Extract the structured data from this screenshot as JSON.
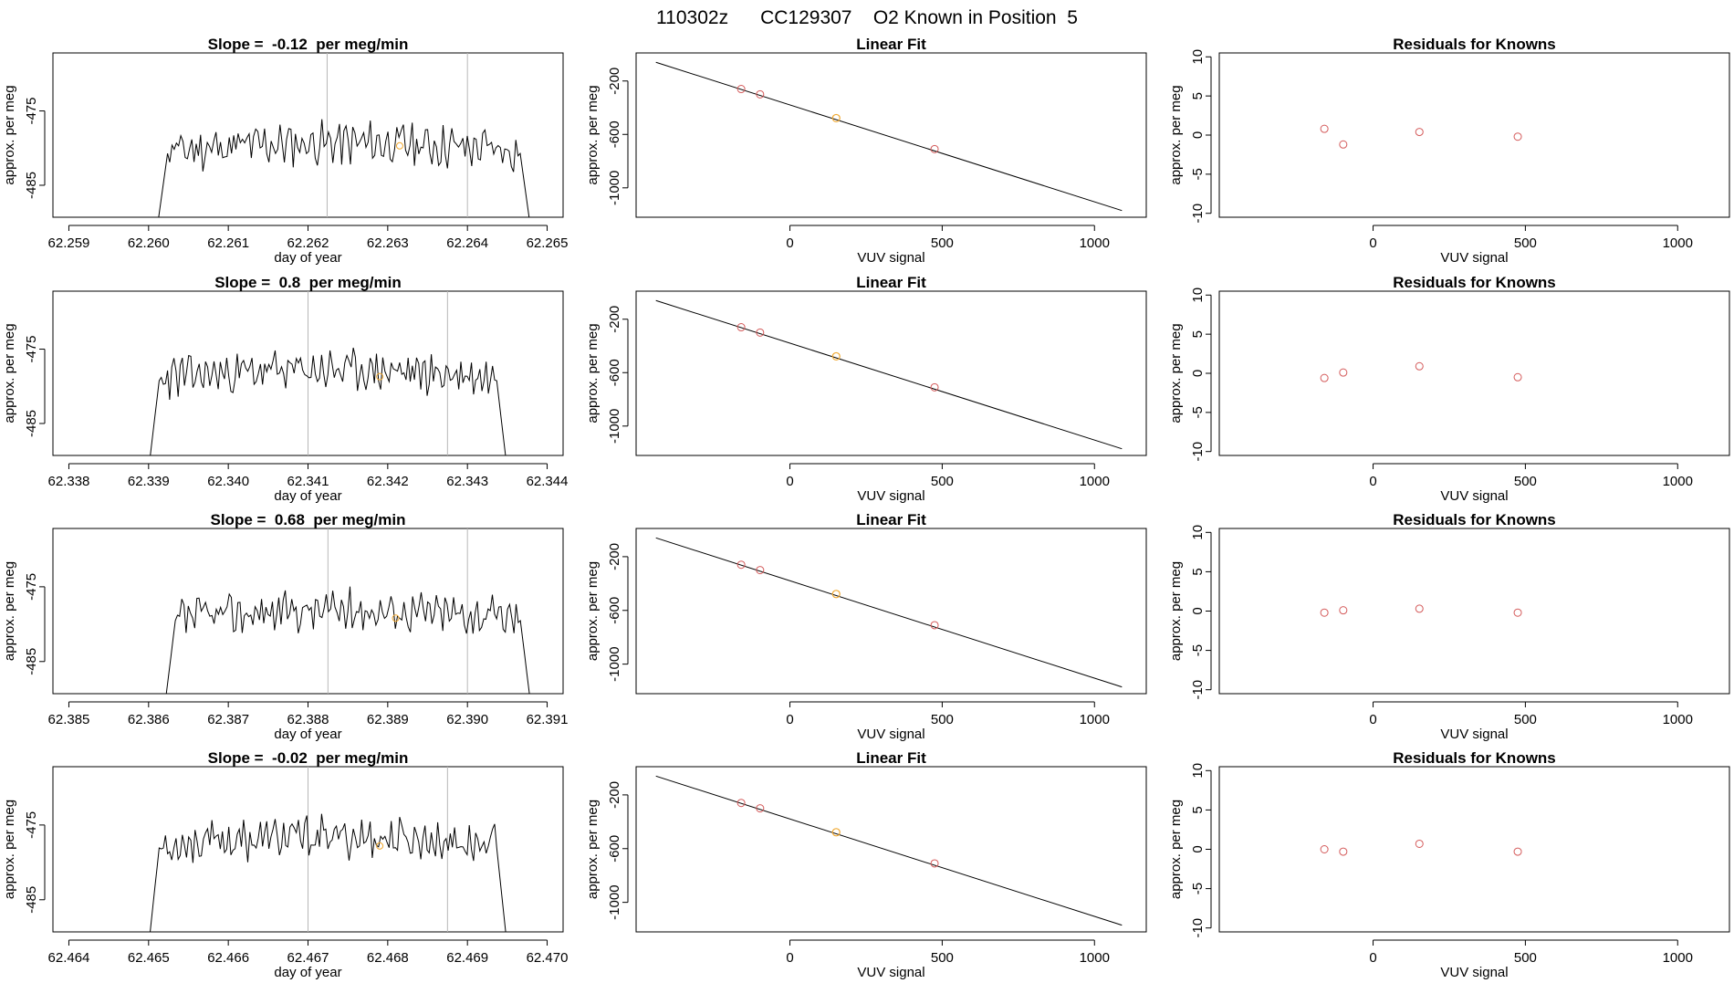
{
  "page_title": "110302z      CC129307    O2 Known in Position  5",
  "colors": {
    "trace": "#000000",
    "known_point": "#d45a5a",
    "sample_point": "#f0a830",
    "gridline": "#b8b8b8",
    "fit_line": "#000000"
  },
  "labels": {
    "time_xlabel": "day of year",
    "ylabel": "approx. per meg",
    "vuv_xlabel": "VUV signal",
    "fit_title": "Linear Fit",
    "resid_title": "Residuals for Knowns"
  },
  "chart_data": [
    {
      "type": "line",
      "title": "Slope =  -0.12  per meg/min",
      "xlabel": "day of year",
      "ylabel": "approx. per meg",
      "xlim": [
        62.2588,
        62.2652
      ],
      "ylim": [
        -489.3,
        -467.2
      ],
      "x_ticks": [
        "62.259",
        "62.260",
        "62.261",
        "62.262",
        "62.263",
        "62.264",
        "62.265"
      ],
      "x_tick_values": [
        62.259,
        62.26,
        62.261,
        62.262,
        62.263,
        62.264,
        62.265
      ],
      "y_ticks": [
        "-485",
        "-475"
      ],
      "y_tick_values": [
        -485,
        -475
      ],
      "x_start": 62.2601,
      "x_end": 62.2648,
      "base": -480.5,
      "amp": 2.1,
      "seed": 11,
      "vlines": [
        62.26224,
        62.264
      ],
      "sample_point": {
        "x": 62.26315,
        "y": -479.7
      }
    },
    {
      "type": "line",
      "title": "Slope =  0.8  per meg/min",
      "xlabel": "day of year",
      "ylabel": "approx. per meg",
      "xlim": [
        62.3378,
        62.3442
      ],
      "ylim": [
        -489.3,
        -467.2
      ],
      "x_ticks": [
        "62.338",
        "62.339",
        "62.340",
        "62.341",
        "62.342",
        "62.343",
        "62.344"
      ],
      "x_tick_values": [
        62.338,
        62.339,
        62.34,
        62.341,
        62.342,
        62.343,
        62.344
      ],
      "y_ticks": [
        "-485",
        "-475"
      ],
      "y_tick_values": [
        -485,
        -475
      ],
      "x_start": 62.339,
      "x_end": 62.3435,
      "base": -479.0,
      "amp": 2.0,
      "seed": 23,
      "vlines": [
        62.341,
        62.34275
      ],
      "sample_point": {
        "x": 62.3419,
        "y": -478.7
      }
    },
    {
      "type": "line",
      "title": "Slope =  0.68  per meg/min",
      "xlabel": "day of year",
      "ylabel": "approx. per meg",
      "xlim": [
        62.3848,
        62.3912
      ],
      "ylim": [
        -489.3,
        -467.2
      ],
      "x_ticks": [
        "62.385",
        "62.386",
        "62.387",
        "62.388",
        "62.389",
        "62.390",
        "62.391"
      ],
      "x_tick_values": [
        62.385,
        62.386,
        62.387,
        62.388,
        62.389,
        62.39,
        62.391
      ],
      "y_ticks": [
        "-485",
        "-475"
      ],
      "y_tick_values": [
        -485,
        -475
      ],
      "x_start": 62.3862,
      "x_end": 62.3908,
      "base": -479.3,
      "amp": 2.0,
      "seed": 37,
      "vlines": [
        62.38825,
        62.39
      ],
      "sample_point": {
        "x": 62.3891,
        "y": -479.2
      }
    },
    {
      "type": "line",
      "title": "Slope =  -0.02  per meg/min",
      "xlabel": "day of year",
      "ylabel": "approx. per meg",
      "xlim": [
        62.4638,
        62.4702
      ],
      "ylim": [
        -489.3,
        -467.2
      ],
      "x_ticks": [
        "62.464",
        "62.465",
        "62.466",
        "62.467",
        "62.468",
        "62.469",
        "62.470"
      ],
      "x_tick_values": [
        62.464,
        62.465,
        62.466,
        62.467,
        62.468,
        62.469,
        62.47
      ],
      "y_ticks": [
        "-485",
        "-475"
      ],
      "y_tick_values": [
        -485,
        -475
      ],
      "x_start": 62.465,
      "x_end": 62.4695,
      "base": -477.8,
      "amp": 2.0,
      "seed": 53,
      "vlines": [
        62.467,
        62.46875
      ],
      "sample_point": {
        "x": 62.4679,
        "y": -477.8
      }
    },
    {
      "type": "scatter",
      "title": "Linear Fit",
      "xlabel": "VUV signal",
      "ylabel": "approx. per meg",
      "xlim": [
        -505,
        1170
      ],
      "ylim": [
        -1220,
        10
      ],
      "x_ticks": [
        "0",
        "500",
        "1000"
      ],
      "x_tick_values": [
        0,
        500,
        1000
      ],
      "y_ticks": [
        "-1000",
        "-600",
        "-200"
      ],
      "y_tick_values": [
        -1000,
        -600,
        -200
      ],
      "fit_line": {
        "x": [
          -440,
          1090
        ],
        "y": [
          -60,
          -1170
        ]
      },
      "knowns": [
        {
          "x": -160,
          "y": -260
        },
        {
          "x": -98,
          "y": -300
        },
        {
          "x": 475,
          "y": -710
        }
      ],
      "sample": {
        "x": 152,
        "y": -478
      }
    },
    {
      "type": "scatter",
      "title": "Linear Fit",
      "xlabel": "VUV signal",
      "ylabel": "approx. per meg",
      "xlim": [
        -505,
        1170
      ],
      "ylim": [
        -1220,
        10
      ],
      "x_ticks": [
        "0",
        "500",
        "1000"
      ],
      "x_tick_values": [
        0,
        500,
        1000
      ],
      "y_ticks": [
        "-1000",
        "-600",
        "-200"
      ],
      "y_tick_values": [
        -1000,
        -600,
        -200
      ],
      "fit_line": {
        "x": [
          -440,
          1090
        ],
        "y": [
          -60,
          -1170
        ]
      },
      "knowns": [
        {
          "x": -160,
          "y": -260
        },
        {
          "x": -98,
          "y": -300
        },
        {
          "x": 475,
          "y": -710
        }
      ],
      "sample": {
        "x": 152,
        "y": -478
      }
    },
    {
      "type": "scatter",
      "title": "Linear Fit",
      "xlabel": "VUV signal",
      "ylabel": "approx. per meg",
      "xlim": [
        -505,
        1170
      ],
      "ylim": [
        -1220,
        10
      ],
      "x_ticks": [
        "0",
        "500",
        "1000"
      ],
      "x_tick_values": [
        0,
        500,
        1000
      ],
      "y_ticks": [
        "-1000",
        "-600",
        "-200"
      ],
      "y_tick_values": [
        -1000,
        -600,
        -200
      ],
      "fit_line": {
        "x": [
          -440,
          1090
        ],
        "y": [
          -60,
          -1170
        ]
      },
      "knowns": [
        {
          "x": -160,
          "y": -260
        },
        {
          "x": -98,
          "y": -300
        },
        {
          "x": 475,
          "y": -710
        }
      ],
      "sample": {
        "x": 152,
        "y": -478
      }
    },
    {
      "type": "scatter",
      "title": "Linear Fit",
      "xlabel": "VUV signal",
      "ylabel": "approx. per meg",
      "xlim": [
        -505,
        1170
      ],
      "ylim": [
        -1220,
        10
      ],
      "x_ticks": [
        "0",
        "500",
        "1000"
      ],
      "x_tick_values": [
        0,
        500,
        1000
      ],
      "y_ticks": [
        "-1000",
        "-600",
        "-200"
      ],
      "y_tick_values": [
        -1000,
        -600,
        -200
      ],
      "fit_line": {
        "x": [
          -440,
          1090
        ],
        "y": [
          -60,
          -1170
        ]
      },
      "knowns": [
        {
          "x": -160,
          "y": -260
        },
        {
          "x": -98,
          "y": -300
        },
        {
          "x": 475,
          "y": -710
        }
      ],
      "sample": {
        "x": 152,
        "y": -478
      }
    },
    {
      "type": "scatter",
      "title": "Residuals for Knowns",
      "xlabel": "VUV signal",
      "ylabel": "approx. per meg",
      "xlim": [
        -505,
        1170
      ],
      "ylim": [
        -10.5,
        10.5
      ],
      "x_ticks": [
        "0",
        "500",
        "1000"
      ],
      "x_tick_values": [
        0,
        500,
        1000
      ],
      "y_ticks": [
        "-10",
        "-5",
        "0",
        "5",
        "10"
      ],
      "y_tick_values": [
        -10,
        -5,
        0,
        5,
        10
      ],
      "points": [
        {
          "x": -160,
          "y": 0.8
        },
        {
          "x": -98,
          "y": -1.2
        },
        {
          "x": 152,
          "y": 0.4
        },
        {
          "x": 475,
          "y": -0.2
        }
      ]
    },
    {
      "type": "scatter",
      "title": "Residuals for Knowns",
      "xlabel": "VUV signal",
      "ylabel": "approx. per meg",
      "xlim": [
        -505,
        1170
      ],
      "ylim": [
        -10.5,
        10.5
      ],
      "x_ticks": [
        "0",
        "500",
        "1000"
      ],
      "x_tick_values": [
        0,
        500,
        1000
      ],
      "y_ticks": [
        "-10",
        "-5",
        "0",
        "5",
        "10"
      ],
      "y_tick_values": [
        -10,
        -5,
        0,
        5,
        10
      ],
      "points": [
        {
          "x": -160,
          "y": -0.6
        },
        {
          "x": -98,
          "y": 0.1
        },
        {
          "x": 152,
          "y": 0.9
        },
        {
          "x": 475,
          "y": -0.5
        }
      ]
    },
    {
      "type": "scatter",
      "title": "Residuals for Knowns",
      "xlabel": "VUV signal",
      "ylabel": "approx. per meg",
      "xlim": [
        -505,
        1170
      ],
      "ylim": [
        -10.5,
        10.5
      ],
      "x_ticks": [
        "0",
        "500",
        "1000"
      ],
      "x_tick_values": [
        0,
        500,
        1000
      ],
      "y_ticks": [
        "-10",
        "-5",
        "0",
        "5",
        "10"
      ],
      "y_tick_values": [
        -10,
        -5,
        0,
        5,
        10
      ],
      "points": [
        {
          "x": -160,
          "y": -0.2
        },
        {
          "x": -98,
          "y": 0.1
        },
        {
          "x": 152,
          "y": 0.3
        },
        {
          "x": 475,
          "y": -0.2
        }
      ]
    },
    {
      "type": "scatter",
      "title": "Residuals for Knowns",
      "xlabel": "VUV signal",
      "ylabel": "approx. per meg",
      "xlim": [
        -505,
        1170
      ],
      "ylim": [
        -10.5,
        10.5
      ],
      "x_ticks": [
        "0",
        "500",
        "1000"
      ],
      "x_tick_values": [
        0,
        500,
        1000
      ],
      "y_ticks": [
        "-10",
        "-5",
        "0",
        "5",
        "10"
      ],
      "y_tick_values": [
        -10,
        -5,
        0,
        5,
        10
      ],
      "points": [
        {
          "x": -160,
          "y": 0.0
        },
        {
          "x": -98,
          "y": -0.3
        },
        {
          "x": 152,
          "y": 0.7
        },
        {
          "x": 475,
          "y": -0.3
        }
      ]
    }
  ]
}
